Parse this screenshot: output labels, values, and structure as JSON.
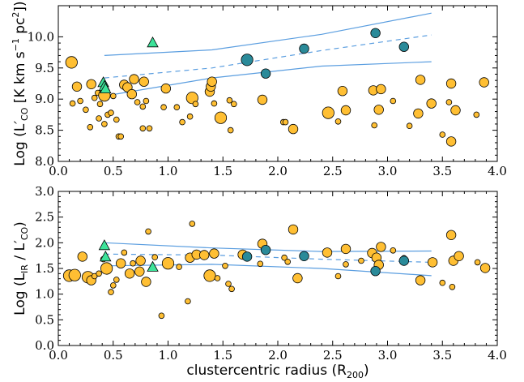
{
  "chart_data": [
    {
      "type": "scatter",
      "xlabel": "",
      "ylabel": "Log (L′CO [K km s⁻¹ pc²])",
      "xlim": [
        0.0,
        4.0
      ],
      "ylim": [
        8.0,
        10.5
      ],
      "xticks": [
        "0.0",
        "0.5",
        "1.0",
        "1.5",
        "2.0",
        "2.5",
        "3.0",
        "3.5",
        "4.0"
      ],
      "yticks": [
        "8.0",
        "8.5",
        "9.0",
        "9.5",
        "10.0"
      ],
      "ytick_values": [
        8.0,
        8.5,
        9.0,
        9.5,
        10.0
      ],
      "colors": {
        "orange": "#ffbf33",
        "teal": "#2a8a99",
        "green": "#3de39a",
        "line": "#5b9ee0"
      },
      "series": [
        {
          "marker": "circle",
          "color": "orange",
          "points": [
            [
              0.12,
              9.59,
              "l"
            ],
            [
              0.13,
              8.93,
              "s"
            ],
            [
              0.17,
              9.2,
              "m"
            ],
            [
              0.2,
              8.97,
              "s"
            ],
            [
              0.25,
              8.83,
              "s"
            ],
            [
              0.3,
              9.24,
              "m"
            ],
            [
              0.29,
              8.55,
              "s"
            ],
            [
              0.33,
              9.02,
              "s"
            ],
            [
              0.36,
              9.1,
              "s"
            ],
            [
              0.37,
              8.69,
              "s"
            ],
            [
              0.38,
              8.92,
              "s"
            ],
            [
              0.42,
              9.06,
              "l"
            ],
            [
              0.45,
              8.75,
              "s"
            ],
            [
              0.42,
              8.6,
              "s"
            ],
            [
              0.5,
              9.05,
              "s"
            ],
            [
              0.53,
              8.67,
              "s"
            ],
            [
              0.48,
              8.78,
              "s"
            ],
            [
              0.55,
              8.4,
              "s"
            ],
            [
              0.57,
              8.4,
              "s"
            ],
            [
              0.6,
              9.23,
              "m"
            ],
            [
              0.63,
              9.19,
              "m"
            ],
            [
              0.67,
              9.08,
              "m"
            ],
            [
              0.69,
              9.32,
              "m"
            ],
            [
              0.72,
              8.95,
              "s"
            ],
            [
              0.77,
              8.88,
              "s"
            ],
            [
              0.78,
              9.28,
              "m"
            ],
            [
              0.77,
              8.53,
              "s"
            ],
            [
              0.83,
              8.53,
              "s"
            ],
            [
              0.98,
              9.17,
              "m"
            ],
            [
              0.96,
              8.87,
              "s"
            ],
            [
              1.08,
              8.87,
              "s"
            ],
            [
              1.13,
              8.63,
              "s"
            ],
            [
              1.2,
              8.72,
              "s"
            ],
            [
              1.22,
              9.02,
              "l"
            ],
            [
              1.25,
              8.92,
              "s"
            ],
            [
              1.38,
              9.12,
              "m"
            ],
            [
              1.39,
              9.2,
              "m"
            ],
            [
              1.4,
              9.28,
              "m"
            ],
            [
              1.42,
              8.93,
              "s"
            ],
            [
              1.48,
              8.7,
              "l"
            ],
            [
              1.56,
              8.98,
              "s"
            ],
            [
              1.57,
              8.5,
              "s"
            ],
            [
              1.6,
              8.92,
              "s"
            ],
            [
              1.86,
              8.99,
              "m"
            ],
            [
              2.05,
              8.63,
              "s"
            ],
            [
              2.07,
              8.63,
              "s"
            ],
            [
              2.14,
              8.52,
              "m"
            ],
            [
              2.46,
              8.78,
              "l"
            ],
            [
              2.55,
              8.64,
              "s"
            ],
            [
              2.59,
              9.13,
              "m"
            ],
            [
              2.62,
              8.82,
              "m"
            ],
            [
              2.87,
              9.14,
              "m"
            ],
            [
              2.88,
              8.58,
              "s"
            ],
            [
              2.92,
              8.83,
              "m"
            ],
            [
              2.94,
              9.16,
              "m"
            ],
            [
              3.05,
              8.97,
              "s"
            ],
            [
              3.2,
              8.57,
              "s"
            ],
            [
              3.28,
              8.77,
              "m"
            ],
            [
              3.3,
              9.31,
              "m"
            ],
            [
              3.4,
              8.93,
              "m"
            ],
            [
              3.5,
              8.43,
              "s"
            ],
            [
              3.58,
              9.25,
              "m"
            ],
            [
              3.58,
              8.32,
              "m"
            ],
            [
              3.62,
              8.82,
              "m"
            ],
            [
              3.81,
              8.75,
              "s"
            ],
            [
              3.88,
              9.27,
              "m"
            ],
            [
              3.56,
              8.95,
              "s"
            ],
            [
              0.8,
              8.97,
              "s"
            ]
          ]
        },
        {
          "marker": "circle",
          "color": "teal",
          "points": [
            [
              1.72,
              9.63,
              "l"
            ],
            [
              1.89,
              9.41,
              "m"
            ],
            [
              2.24,
              9.81,
              "m"
            ],
            [
              2.89,
              10.06,
              "m"
            ],
            [
              3.15,
              9.84,
              "m"
            ]
          ]
        },
        {
          "marker": "triangle",
          "color": "green",
          "points": [
            [
              0.41,
              9.26,
              "m"
            ],
            [
              0.42,
              9.2,
              "m"
            ],
            [
              0.43,
              9.16,
              "m"
            ],
            [
              0.86,
              9.9,
              "m"
            ]
          ]
        }
      ],
      "lines": [
        {
          "style": "solid",
          "x": [
            0.42,
            1.4,
            2.4,
            3.4
          ],
          "y": [
            9.7,
            9.79,
            10.04,
            10.38
          ]
        },
        {
          "style": "dashed",
          "x": [
            0.42,
            1.4,
            2.4,
            3.4
          ],
          "y": [
            9.34,
            9.5,
            9.78,
            10.03
          ]
        },
        {
          "style": "solid",
          "x": [
            0.42,
            1.4,
            2.4,
            3.4
          ],
          "y": [
            9.05,
            9.34,
            9.53,
            9.6
          ]
        }
      ]
    },
    {
      "type": "scatter",
      "xlabel": "clustercentric radius (R₂₀₀)",
      "ylabel": "Log (Lᴵᴿ / L′CO)",
      "xlim": [
        0.0,
        4.0
      ],
      "ylim": [
        0.0,
        3.0
      ],
      "xticks": [
        "0.0",
        "0.5",
        "1.0",
        "1.5",
        "2.0",
        "2.5",
        "3.0",
        "3.5",
        "4.0"
      ],
      "yticks": [
        "0.0",
        "0.5",
        "1.0",
        "1.5",
        "2.0",
        "2.5",
        "3.0"
      ],
      "ytick_values": [
        0.0,
        0.5,
        1.0,
        1.5,
        2.0,
        2.5,
        3.0
      ],
      "colors": {
        "orange": "#ffbf33",
        "teal": "#2a8a99",
        "green": "#3de39a",
        "line": "#5b9ee0"
      },
      "series": [
        {
          "marker": "circle",
          "color": "orange",
          "points": [
            [
              0.1,
              1.36,
              "l"
            ],
            [
              0.15,
              1.37,
              "l"
            ],
            [
              0.22,
              1.73,
              "m"
            ],
            [
              0.27,
              1.33,
              "l"
            ],
            [
              0.3,
              1.27,
              "m"
            ],
            [
              0.33,
              1.35,
              "s"
            ],
            [
              0.37,
              1.4,
              "s"
            ],
            [
              0.41,
              1.68,
              "s"
            ],
            [
              0.44,
              1.5,
              "l"
            ],
            [
              0.48,
              1.04,
              "s"
            ],
            [
              0.5,
              1.17,
              "s"
            ],
            [
              0.53,
              1.28,
              "s"
            ],
            [
              0.57,
              1.6,
              "m"
            ],
            [
              0.6,
              1.81,
              "s"
            ],
            [
              0.65,
              1.4,
              "m"
            ],
            [
              0.68,
              1.6,
              "s"
            ],
            [
              0.74,
              1.44,
              "m"
            ],
            [
              0.75,
              1.65,
              "m"
            ],
            [
              0.8,
              1.24,
              "m"
            ],
            [
              0.82,
              2.22,
              "s"
            ],
            [
              0.88,
              1.72,
              "s"
            ],
            [
              0.94,
              0.58,
              "s"
            ],
            [
              1.0,
              1.6,
              "l"
            ],
            [
              1.1,
              1.53,
              "s"
            ],
            [
              1.18,
              0.86,
              "s"
            ],
            [
              1.2,
              1.71,
              "m"
            ],
            [
              1.22,
              2.37,
              "s"
            ],
            [
              1.26,
              1.77,
              "m"
            ],
            [
              1.33,
              1.76,
              "m"
            ],
            [
              1.38,
              1.36,
              "l"
            ],
            [
              1.42,
              1.79,
              "m"
            ],
            [
              1.45,
              1.31,
              "s"
            ],
            [
              1.52,
              1.55,
              "s"
            ],
            [
              1.55,
              1.2,
              "s"
            ],
            [
              1.58,
              1.1,
              "s"
            ],
            [
              1.68,
              1.77,
              "m"
            ],
            [
              1.84,
              1.59,
              "s"
            ],
            [
              1.86,
              1.98,
              "m"
            ],
            [
              2.06,
              1.71,
              "s"
            ],
            [
              2.09,
              1.63,
              "s"
            ],
            [
              2.14,
              2.26,
              "m"
            ],
            [
              2.18,
              1.31,
              "m"
            ],
            [
              2.45,
              1.81,
              "m"
            ],
            [
              2.55,
              1.35,
              "s"
            ],
            [
              2.62,
              1.88,
              "m"
            ],
            [
              2.62,
              1.58,
              "s"
            ],
            [
              2.76,
              1.65,
              "s"
            ],
            [
              2.86,
              1.8,
              "m"
            ],
            [
              2.9,
              1.71,
              "m"
            ],
            [
              2.92,
              1.57,
              "m"
            ],
            [
              2.94,
              1.92,
              "m"
            ],
            [
              3.05,
              1.85,
              "s"
            ],
            [
              3.15,
              1.7,
              "s"
            ],
            [
              3.3,
              1.27,
              "m"
            ],
            [
              3.41,
              1.62,
              "m"
            ],
            [
              3.5,
              1.22,
              "s"
            ],
            [
              3.58,
              2.15,
              "m"
            ],
            [
              3.59,
              1.14,
              "s"
            ],
            [
              3.6,
              1.65,
              "m"
            ],
            [
              3.65,
              1.74,
              "m"
            ],
            [
              3.82,
              1.62,
              "s"
            ],
            [
              3.89,
              1.51,
              "m"
            ]
          ]
        },
        {
          "marker": "circle",
          "color": "teal",
          "points": [
            [
              1.72,
              1.73,
              "m"
            ],
            [
              1.89,
              1.86,
              "m"
            ],
            [
              2.24,
              1.74,
              "m"
            ],
            [
              2.89,
              1.45,
              "m"
            ],
            [
              3.15,
              1.65,
              "m"
            ]
          ]
        },
        {
          "marker": "triangle",
          "color": "green",
          "points": [
            [
              0.42,
              1.94,
              "m"
            ],
            [
              0.43,
              1.72,
              "m"
            ],
            [
              0.86,
              1.52,
              "m"
            ]
          ]
        }
      ],
      "lines": [
        {
          "style": "solid",
          "x": [
            0.42,
            1.4,
            2.4,
            3.4
          ],
          "y": [
            2.0,
            1.9,
            1.83,
            1.84
          ]
        },
        {
          "style": "dashed",
          "x": [
            0.42,
            1.4,
            2.4,
            3.4
          ],
          "y": [
            1.78,
            1.76,
            1.68,
            1.62
          ]
        },
        {
          "style": "solid",
          "x": [
            0.42,
            1.4,
            2.4,
            3.4
          ],
          "y": [
            1.55,
            1.58,
            1.5,
            1.36
          ]
        }
      ]
    }
  ]
}
